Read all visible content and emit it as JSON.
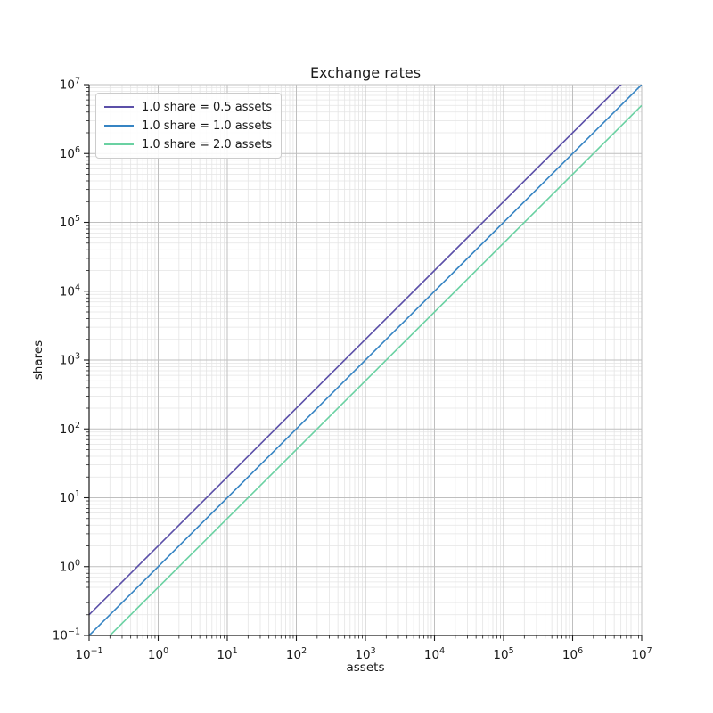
{
  "chart_data": {
    "type": "line",
    "title": "Exchange rates",
    "xlabel": "assets",
    "ylabel": "shares",
    "xscale": "log",
    "yscale": "log",
    "xlim": [
      0.1,
      10000000
    ],
    "ylim": [
      0.1,
      10000000
    ],
    "x_tick_exponents": [
      -1,
      0,
      1,
      2,
      3,
      4,
      5,
      6,
      7
    ],
    "y_tick_exponents": [
      -1,
      0,
      1,
      2,
      3,
      4,
      5,
      6,
      7
    ],
    "grid": {
      "major": true,
      "minor": true
    },
    "legend_position": "upper left",
    "series": [
      {
        "label": "1.0 share = 0.5 assets",
        "color": "#5b4fa8",
        "assets_per_share": 0.5,
        "shares_per_asset": 2.0,
        "endpoints": [
          [
            0.1,
            0.2
          ],
          [
            10000000,
            20000000
          ]
        ]
      },
      {
        "label": "1.0 share = 1.0 assets",
        "color": "#3684c3",
        "assets_per_share": 1.0,
        "shares_per_asset": 1.0,
        "endpoints": [
          [
            0.1,
            0.1
          ],
          [
            10000000,
            10000000
          ]
        ]
      },
      {
        "label": "1.0 share = 2.0 assets",
        "color": "#6ad1a2",
        "assets_per_share": 2.0,
        "shares_per_asset": 0.5,
        "endpoints": [
          [
            0.1,
            0.05
          ],
          [
            10000000,
            5000000
          ]
        ]
      }
    ],
    "style": {
      "background": "#ffffff",
      "grid_major_color": "#bfbfbf",
      "grid_minor_color": "#e4e4e4",
      "spine_color": "#1c1c1c",
      "tick_color": "#1c1c1c",
      "text_color": "#1a1a1a"
    }
  }
}
